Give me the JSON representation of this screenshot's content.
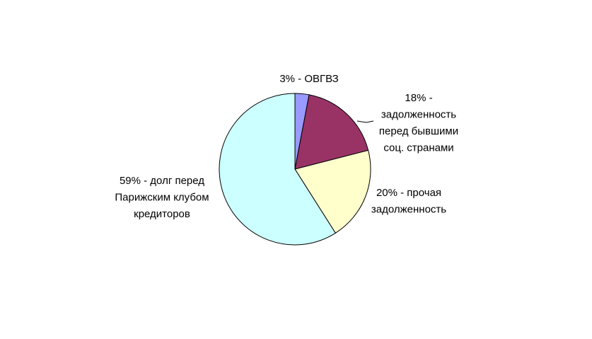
{
  "chart_data": {
    "type": "pie",
    "categories": [
      [
        "3% - ОВГВЗ"
      ],
      [
        "18% -",
        "задолженность",
        "перед бывшими",
        "соц. странами"
      ],
      [
        "20% - прочая",
        "задолженность"
      ],
      [
        "59% - долг перед",
        "Парижским клубом",
        "кредиторов"
      ]
    ],
    "values": [
      3,
      18,
      20,
      59
    ],
    "colors": [
      "#9999ff",
      "#993366",
      "#ffffcc",
      "#ccffff"
    ]
  }
}
